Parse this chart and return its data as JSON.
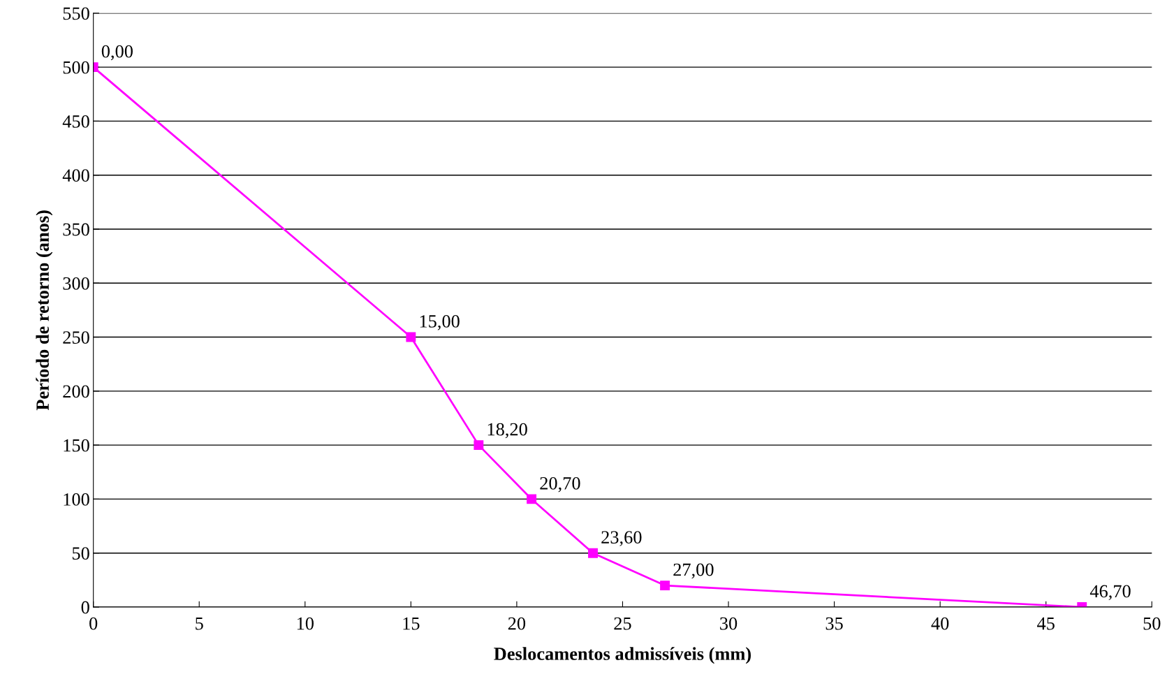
{
  "chart_data": {
    "type": "line",
    "xlabel": "Deslocamentos admissíveis (mm)",
    "ylabel": "Período de retorno (anos)",
    "x": [
      0,
      15,
      18.2,
      20.7,
      23.6,
      27,
      46.7
    ],
    "series": [
      {
        "color": "#ff00ff",
        "values": [
          500,
          250,
          150,
          100,
          50,
          20,
          0
        ]
      }
    ],
    "annotations": [
      {
        "text": "0,00",
        "x": 0,
        "y": 500
      },
      {
        "text": "15,00",
        "x": 15,
        "y": 250
      },
      {
        "text": "18,20",
        "x": 18.2,
        "y": 150
      },
      {
        "text": "20,70",
        "x": 20.7,
        "y": 100
      },
      {
        "text": "23,60",
        "x": 23.6,
        "y": 50
      },
      {
        "text": "27,00",
        "x": 27,
        "y": 20
      },
      {
        "text": "46,70",
        "x": 46.7,
        "y": 0
      }
    ],
    "xlim": [
      0,
      50
    ],
    "xticks": [
      0,
      5,
      10,
      15,
      20,
      25,
      30,
      35,
      40,
      45,
      50
    ],
    "ylim": [
      0,
      550
    ],
    "yticks": [
      0,
      50,
      100,
      150,
      200,
      250,
      300,
      350,
      400,
      450,
      500,
      550
    ],
    "grid": "y",
    "marker": "square",
    "line_style": "solid"
  }
}
